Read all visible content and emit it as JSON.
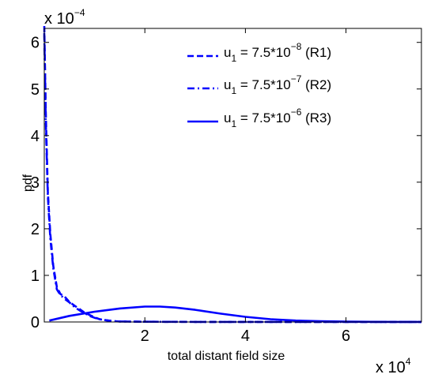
{
  "chart_data": {
    "type": "line",
    "xlabel": "total distant field size",
    "ylabel": "pdf",
    "x_multiplier": {
      "base": "x 10",
      "exponent": "4"
    },
    "y_multiplier": {
      "base": "x 10",
      "exponent": "−4"
    },
    "xlim": [
      0,
      75000
    ],
    "ylim": [
      0,
      0.00063
    ],
    "x_ticks": [
      20000,
      40000,
      60000
    ],
    "x_tick_labels": [
      "2",
      "4",
      "6"
    ],
    "y_ticks": [
      0,
      0.0001,
      0.0002,
      0.0003,
      0.0004,
      0.0005,
      0.0006
    ],
    "y_tick_labels": [
      "0",
      "1",
      "2",
      "3",
      "4",
      "5",
      "6"
    ],
    "grid": false,
    "legend_position": "top-right",
    "series": [
      {
        "legend": {
          "var": "u",
          "sub": "1",
          "mid": " = 7.5*10",
          "exp": "−8",
          "tail": " (R1)"
        },
        "color": "#0000ff",
        "style": "dashed",
        "x": [
          0,
          300,
          700,
          1200,
          1800,
          2500,
          3200,
          4000,
          5000,
          6000,
          7000,
          8000,
          9000,
          10000,
          11000,
          12000,
          13500,
          15000,
          20000,
          30000,
          40000,
          50000,
          60000,
          75000
        ],
        "y": [
          0.000635,
          0.00045,
          0.00028,
          0.00019,
          0.00012,
          7.5e-05,
          6e-05,
          5.5e-05,
          4.3e-05,
          3.5e-05,
          2.8e-05,
          2e-05,
          1.5e-05,
          1e-05,
          6e-06,
          4e-06,
          2e-06,
          1e-06,
          5e-07,
          2e-07,
          1e-07,
          1e-07,
          1e-07,
          1e-07
        ]
      },
      {
        "legend": {
          "var": "u",
          "sub": "1",
          "mid": " = 7.5*10",
          "exp": "−7",
          "tail": " (R2)"
        },
        "color": "#0000ff",
        "style": "dashdot",
        "x": [
          0,
          300,
          700,
          1200,
          1800,
          2500,
          3200,
          4000,
          5000,
          6000,
          7000,
          8000,
          9000,
          10000,
          11000,
          12000,
          13500,
          15000,
          20000,
          30000,
          40000,
          50000,
          60000,
          75000
        ],
        "y": [
          0.00062,
          0.00043,
          0.00027,
          0.00018,
          0.000115,
          7e-05,
          5.8e-05,
          5e-05,
          4.2e-05,
          3.2e-05,
          2.5e-05,
          1.9e-05,
          1.3e-05,
          9e-06,
          6e-06,
          4e-06,
          2e-06,
          1e-06,
          5e-07,
          2e-07,
          1e-07,
          1e-07,
          1e-07,
          1e-07
        ]
      },
      {
        "legend": {
          "var": "u",
          "sub": "1",
          "mid": " = 7.5*10",
          "exp": "−6",
          "tail": " (R3)"
        },
        "color": "#0000ff",
        "style": "solid",
        "x": [
          1000,
          5000,
          10000,
          15000,
          20000,
          23000,
          26000,
          30000,
          35000,
          40000,
          45000,
          50000,
          55000,
          60000,
          65000,
          70000,
          75000
        ],
        "y": [
          3e-06,
          1.3e-05,
          2.2e-05,
          2.9e-05,
          3.3e-05,
          3.3e-05,
          3.1e-05,
          2.6e-05,
          1.8e-05,
          1.1e-05,
          6e-06,
          3e-06,
          1.5e-06,
          7e-07,
          3e-07,
          2e-07,
          1e-07
        ]
      }
    ]
  }
}
